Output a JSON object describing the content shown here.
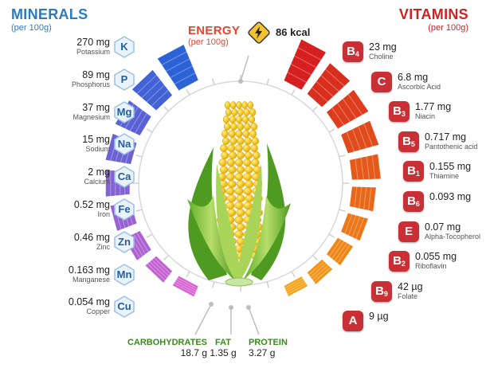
{
  "minerals": {
    "title": "MINERALS",
    "subtitle": "(per 100g)",
    "bar_color_top": "#2d62d6",
    "bar_color_bottom": "#d861d1",
    "items": [
      {
        "symbol": "K",
        "amount": "270 mg",
        "name": "Potassium"
      },
      {
        "symbol": "P",
        "amount": "89 mg",
        "name": "Phosphorus"
      },
      {
        "symbol": "Mg",
        "amount": "37 mg",
        "name": "Magnesium"
      },
      {
        "symbol": "Na",
        "amount": "15 mg",
        "name": "Sodium"
      },
      {
        "symbol": "Ca",
        "amount": "2 mg",
        "name": "Calcium"
      },
      {
        "symbol": "Fe",
        "amount": "0.52 mg",
        "name": "Iron"
      },
      {
        "symbol": "Zn",
        "amount": "0.46 mg",
        "name": "Zinc"
      },
      {
        "symbol": "Mn",
        "amount": "0.163 mg",
        "name": "Manganese"
      },
      {
        "symbol": "Cu",
        "amount": "0.054 mg",
        "name": "Copper"
      }
    ]
  },
  "vitamins": {
    "title": "VITAMINS",
    "subtitle": "(per 100g)",
    "bar_color_top": "#d61f1f",
    "bar_color_bottom": "#f5a316",
    "items": [
      {
        "letter": "B",
        "sub": "4",
        "amount": "23 mg",
        "name": "Choline"
      },
      {
        "letter": "C",
        "sub": "",
        "amount": "6.8 mg",
        "name": "Ascorbic Acid"
      },
      {
        "letter": "B",
        "sub": "3",
        "amount": "1.77 mg",
        "name": "Niacin"
      },
      {
        "letter": "B",
        "sub": "5",
        "amount": "0.717 mg",
        "name": "Pantothenic acid"
      },
      {
        "letter": "B",
        "sub": "1",
        "amount": "0.155 mg",
        "name": "Thiamine"
      },
      {
        "letter": "B",
        "sub": "6",
        "amount": "0.093 mg",
        "name": ""
      },
      {
        "letter": "E",
        "sub": "",
        "amount": "0.07 mg",
        "name": "Alpha-Tocopherol"
      },
      {
        "letter": "B",
        "sub": "2",
        "amount": "0.055 mg",
        "name": "Riboflavin"
      },
      {
        "letter": "B",
        "sub": "9",
        "amount": "42 µg",
        "name": "Folate"
      },
      {
        "letter": "A",
        "sub": "",
        "amount": "9 µg",
        "name": ""
      }
    ]
  },
  "energy": {
    "title": "ENERGY",
    "subtitle": "(per 100g)",
    "value": "86 kcal",
    "icon": "lightning-icon"
  },
  "macros": [
    {
      "label": "CARBOHYDRATES",
      "value": "18.7 g"
    },
    {
      "label": "FAT",
      "value": "1.35 g"
    },
    {
      "label": "PROTEIN",
      "value": "3.27 g"
    }
  ],
  "colors": {
    "minerals_title": "#2a7bc0",
    "vitamins_title": "#cc2222",
    "energy_title": "#e8442a",
    "macro_label": "#3a8a1e",
    "badge": "#c93035"
  }
}
